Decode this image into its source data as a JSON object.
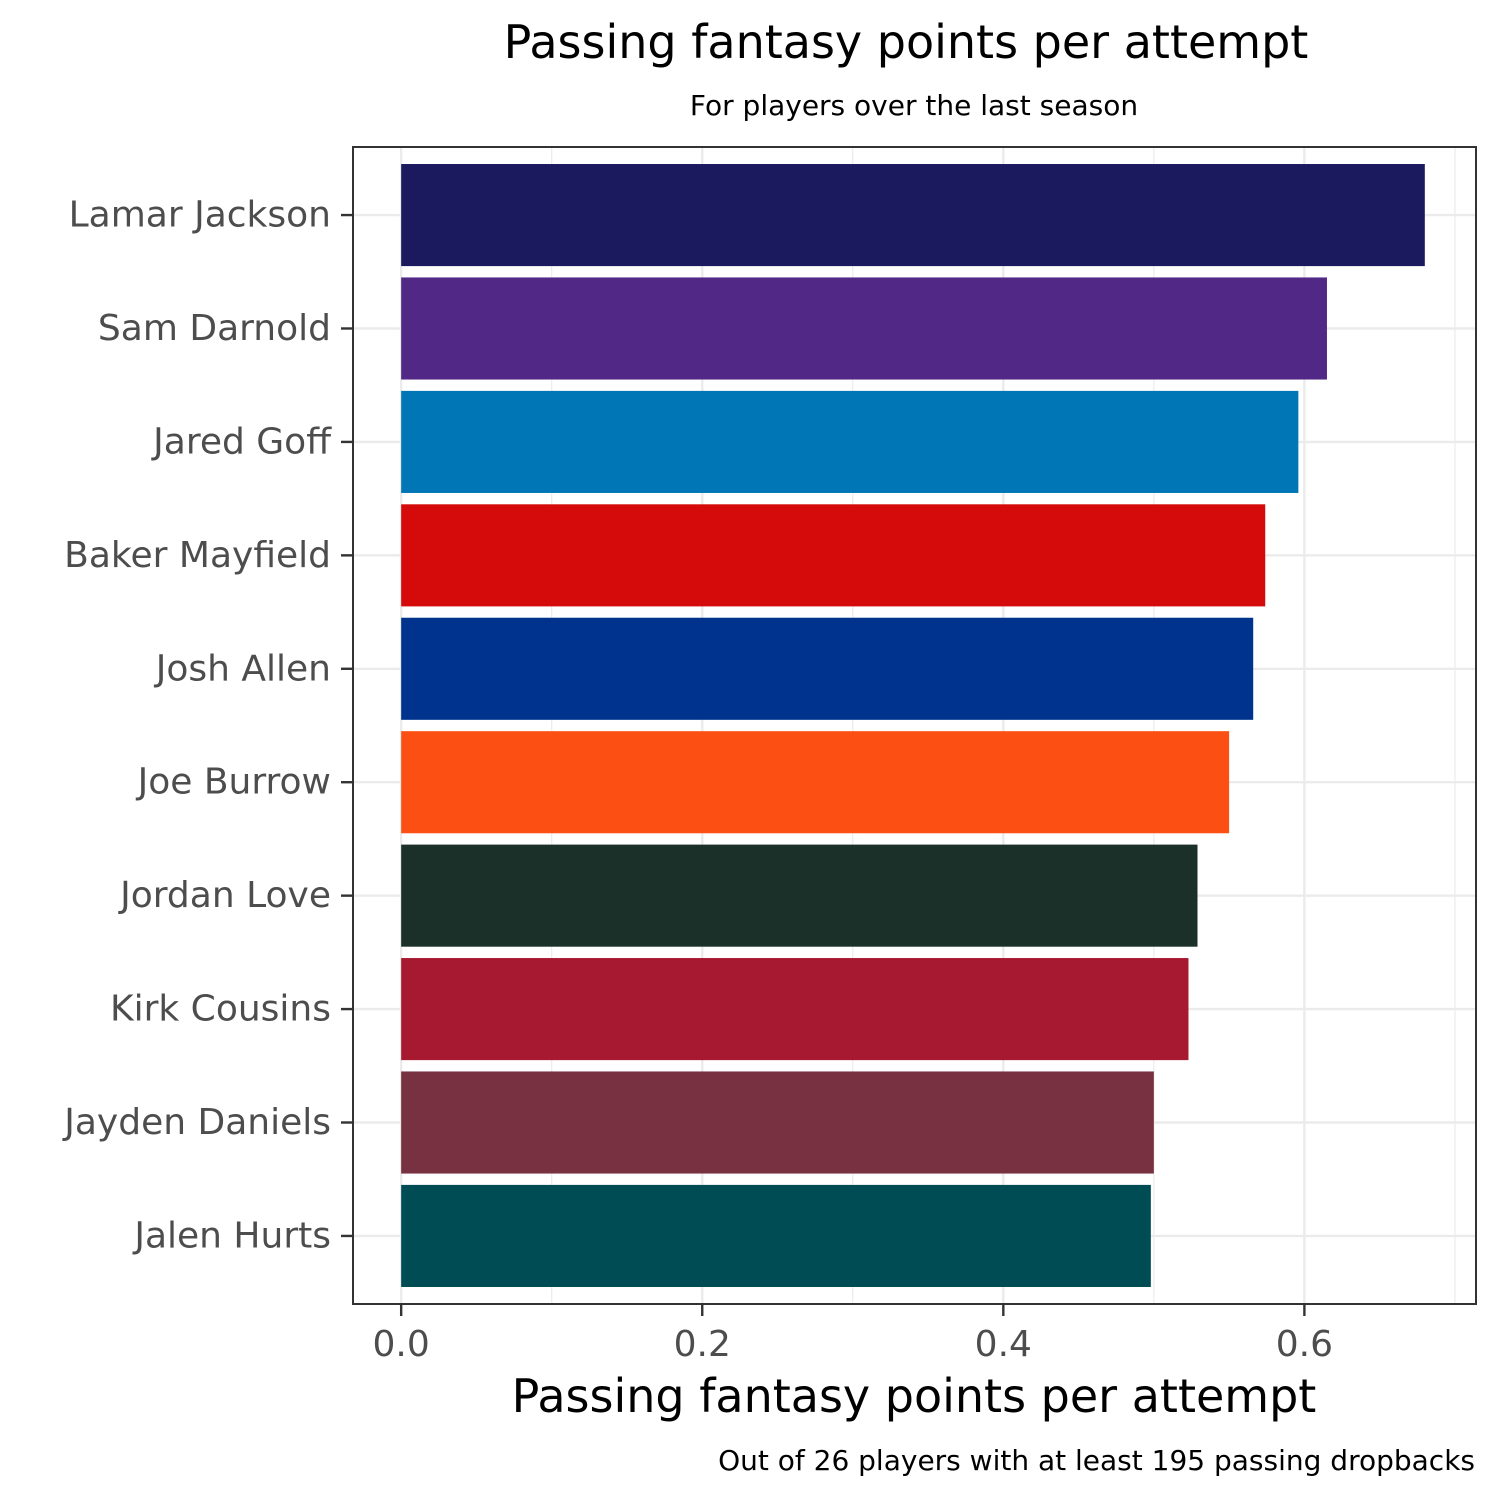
{
  "chart_data": {
    "type": "bar",
    "orientation": "horizontal",
    "title": "Passing fantasy points per attempt",
    "subtitle": "For players over the last season",
    "xlabel": "Passing fantasy points per attempt",
    "ylabel": "",
    "caption": "Out of 26 players with at least 195 passing dropbacks",
    "xlim": [
      -0.032,
      0.714
    ],
    "x_ticks": [
      0.0,
      0.2,
      0.4,
      0.6
    ],
    "x_tick_labels": [
      "0.0",
      "0.2",
      "0.4",
      "0.6"
    ],
    "grid": true,
    "categories": [
      "Lamar Jackson",
      "Sam Darnold",
      "Jared Goff",
      "Baker Mayfield",
      "Josh Allen",
      "Joe Burrow",
      "Jordan Love",
      "Kirk Cousins",
      "Jayden Daniels",
      "Jalen Hurts"
    ],
    "values": [
      0.68,
      0.615,
      0.596,
      0.574,
      0.566,
      0.55,
      0.529,
      0.523,
      0.5,
      0.498
    ],
    "colors": [
      "#1B1A5E",
      "#522886",
      "#0076B6",
      "#D50A0A",
      "#00338D",
      "#FB4F14",
      "#1C302A",
      "#A71930",
      "#773141",
      "#004C54"
    ]
  }
}
